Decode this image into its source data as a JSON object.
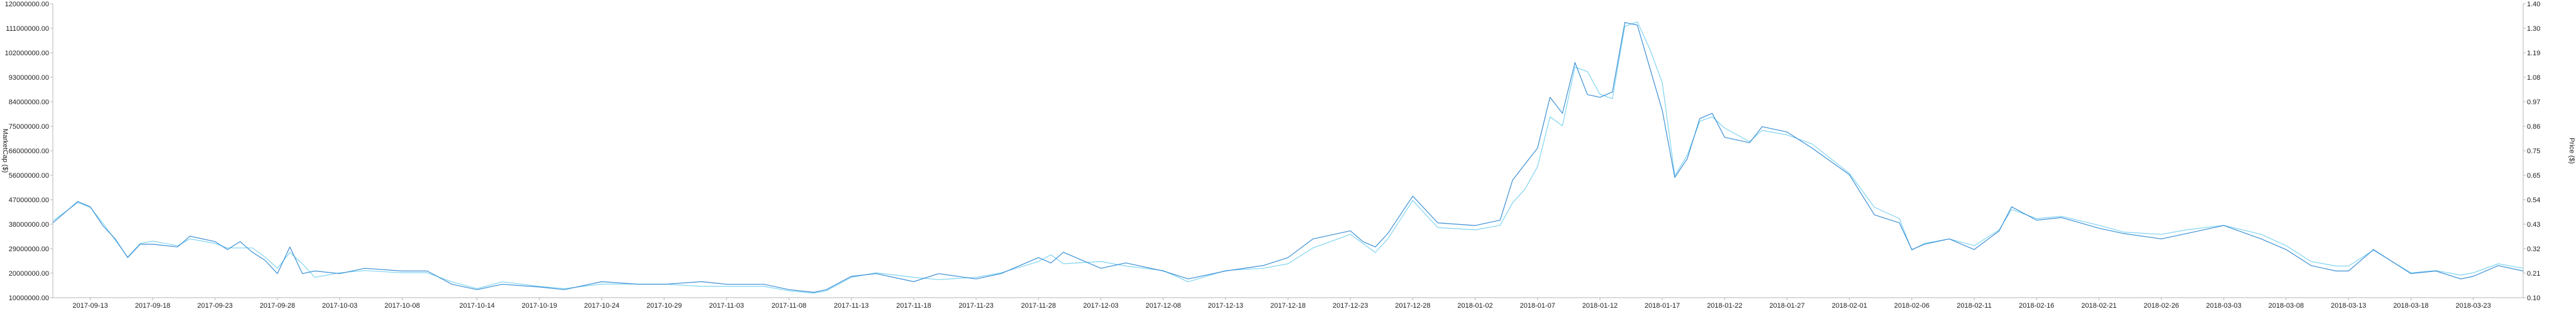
{
  "chart_data": {
    "type": "line",
    "title": "",
    "xlabel": "",
    "ylabel": "MarketCap ($)",
    "y2label": "Price ($)",
    "ylim": [
      10000000,
      120000000
    ],
    "y2lim": [
      0.1,
      1.4
    ],
    "yticks": [
      "120000000.00",
      "111000000.00",
      "102000000.00",
      "93000000.00",
      "84000000.00",
      "75000000.00",
      "66000000.00",
      "56000000.00",
      "47000000.00",
      "38000000.00",
      "29000000.00",
      "20000000.00",
      "10000000.00"
    ],
    "y2ticks": [
      "1.40",
      "1.30",
      "1.19",
      "1.08",
      "0.97",
      "0.86",
      "0.75",
      "0.65",
      "0.54",
      "0.43",
      "0.32",
      "0.21",
      "0.10"
    ],
    "x_start": "2017-09-10",
    "x_end": "2018-03-27",
    "xticks": [
      "2017-09-13",
      "2017-09-18",
      "2017-09-23",
      "2017-09-28",
      "2017-10-03",
      "2017-10-08",
      "2017-10-14",
      "2017-10-19",
      "2017-10-24",
      "2017-10-29",
      "2017-11-03",
      "2017-11-08",
      "2017-11-13",
      "2017-11-18",
      "2017-11-23",
      "2017-11-28",
      "2017-12-03",
      "2017-12-08",
      "2017-12-13",
      "2017-12-18",
      "2017-12-23",
      "2017-12-28",
      "2018-01-02",
      "2018-01-07",
      "2018-01-12",
      "2018-01-17",
      "2018-01-22",
      "2018-01-27",
      "2018-02-01",
      "2018-02-06",
      "2018-02-11",
      "2018-02-16",
      "2018-02-21",
      "2018-02-26",
      "2018-03-03",
      "2018-03-08",
      "2018-03-13",
      "2018-03-18",
      "2018-03-23"
    ],
    "grid": false,
    "series": [
      {
        "color": "#3b8fd6",
        "axis": "left",
        "x": [
          "2017-09-10",
          "2017-09-12",
          "2017-09-13",
          "2017-09-14",
          "2017-09-15",
          "2017-09-16",
          "2017-09-17",
          "2017-09-18",
          "2017-09-20",
          "2017-09-21",
          "2017-09-23",
          "2017-09-24",
          "2017-09-25",
          "2017-09-26",
          "2017-09-27",
          "2017-09-28",
          "2017-09-29",
          "2017-09-30",
          "2017-10-01",
          "2017-10-03",
          "2017-10-05",
          "2017-10-08",
          "2017-10-10",
          "2017-10-12",
          "2017-10-14",
          "2017-10-16",
          "2017-10-19",
          "2017-10-21",
          "2017-10-24",
          "2017-10-27",
          "2017-10-29",
          "2017-11-01",
          "2017-11-03",
          "2017-11-06",
          "2017-11-08",
          "2017-11-10",
          "2017-11-11",
          "2017-11-13",
          "2017-11-15",
          "2017-11-18",
          "2017-11-20",
          "2017-11-23",
          "2017-11-25",
          "2017-11-28",
          "2017-11-29",
          "2017-11-30",
          "2017-12-03",
          "2017-12-05",
          "2017-12-08",
          "2017-12-10",
          "2017-12-13",
          "2017-12-16",
          "2017-12-18",
          "2017-12-20",
          "2017-12-23",
          "2017-12-24",
          "2017-12-25",
          "2017-12-26",
          "2017-12-28",
          "2017-12-30",
          "2018-01-02",
          "2018-01-04",
          "2018-01-05",
          "2018-01-06",
          "2018-01-07",
          "2018-01-08",
          "2018-01-09",
          "2018-01-10",
          "2018-01-11",
          "2018-01-12",
          "2018-01-13",
          "2018-01-14",
          "2018-01-15",
          "2018-01-16",
          "2018-01-17",
          "2018-01-18",
          "2018-01-19",
          "2018-01-20",
          "2018-01-21",
          "2018-01-22",
          "2018-01-24",
          "2018-01-25",
          "2018-01-27",
          "2018-01-29",
          "2018-02-01",
          "2018-02-03",
          "2018-02-05",
          "2018-02-06",
          "2018-02-07",
          "2018-02-09",
          "2018-02-11",
          "2018-02-13",
          "2018-02-14",
          "2018-02-16",
          "2018-02-18",
          "2018-02-21",
          "2018-02-23",
          "2018-02-26",
          "2018-02-28",
          "2018-03-03",
          "2018-03-06",
          "2018-03-08",
          "2018-03-10",
          "2018-03-12",
          "2018-03-13",
          "2018-03-15",
          "2018-03-18",
          "2018-03-20",
          "2018-03-22",
          "2018-03-23",
          "2018-03-25",
          "2018-03-27"
        ],
        "values": [
          38000000,
          46000000,
          44000000,
          37000000,
          32000000,
          25000000,
          30000000,
          30000000,
          29000000,
          33000000,
          31000000,
          28000000,
          31000000,
          27000000,
          24000000,
          19000000,
          29000000,
          19000000,
          20000000,
          19000000,
          21000000,
          20000000,
          20000000,
          15000000,
          13000000,
          15000000,
          14000000,
          13000000,
          16000000,
          15000000,
          15000000,
          16000000,
          15000000,
          15000000,
          13000000,
          12000000,
          13000000,
          18000000,
          19000000,
          16000000,
          19000000,
          17000000,
          19000000,
          25000000,
          23000000,
          27000000,
          21000000,
          23000000,
          20000000,
          17000000,
          20000000,
          22000000,
          25000000,
          32000000,
          35000000,
          31000000,
          29000000,
          34000000,
          48000000,
          38000000,
          37000000,
          39000000,
          54000000,
          60000000,
          66000000,
          85000000,
          79000000,
          98000000,
          86000000,
          85000000,
          87000000,
          113000000,
          112000000,
          96000000,
          80000000,
          55000000,
          62000000,
          77000000,
          79000000,
          70000000,
          68000000,
          74000000,
          72000000,
          66000000,
          56000000,
          41000000,
          38000000,
          28000000,
          30000000,
          32000000,
          28000000,
          35000000,
          44000000,
          39000000,
          40000000,
          36000000,
          34000000,
          32000000,
          34000000,
          37000000,
          32000000,
          28000000,
          22000000,
          20000000,
          20000000,
          28000000,
          19000000,
          20000000,
          17000000,
          18000000,
          22000000,
          20000000
        ]
      },
      {
        "color": "#80d4f0",
        "axis": "right",
        "x": [
          "2017-09-10",
          "2017-09-12",
          "2017-09-13",
          "2017-09-14",
          "2017-09-16",
          "2017-09-17",
          "2017-09-18",
          "2017-09-20",
          "2017-09-21",
          "2017-09-23",
          "2017-09-24",
          "2017-09-25",
          "2017-09-26",
          "2017-09-27",
          "2017-09-28",
          "2017-09-29",
          "2017-09-30",
          "2017-10-01",
          "2017-10-03",
          "2017-10-05",
          "2017-10-08",
          "2017-10-10",
          "2017-10-12",
          "2017-10-14",
          "2017-10-16",
          "2017-10-19",
          "2017-10-21",
          "2017-10-24",
          "2017-10-27",
          "2017-10-29",
          "2017-11-01",
          "2017-11-03",
          "2017-11-06",
          "2017-11-08",
          "2017-11-10",
          "2017-11-11",
          "2017-11-13",
          "2017-11-15",
          "2017-11-18",
          "2017-11-20",
          "2017-11-23",
          "2017-11-25",
          "2017-11-28",
          "2017-11-29",
          "2017-11-30",
          "2017-12-03",
          "2017-12-05",
          "2017-12-08",
          "2017-12-10",
          "2017-12-13",
          "2017-12-16",
          "2017-12-18",
          "2017-12-20",
          "2017-12-23",
          "2017-12-24",
          "2017-12-25",
          "2017-12-26",
          "2017-12-28",
          "2017-12-30",
          "2018-01-02",
          "2018-01-04",
          "2018-01-05",
          "2018-01-06",
          "2018-01-07",
          "2018-01-08",
          "2018-01-09",
          "2018-01-10",
          "2018-01-11",
          "2018-01-12",
          "2018-01-13",
          "2018-01-14",
          "2018-01-15",
          "2018-01-16",
          "2018-01-17",
          "2018-01-18",
          "2018-01-19",
          "2018-01-20",
          "2018-01-21",
          "2018-01-22",
          "2018-01-24",
          "2018-01-25",
          "2018-01-27",
          "2018-01-29",
          "2018-02-01",
          "2018-02-03",
          "2018-02-05",
          "2018-02-06",
          "2018-02-07",
          "2018-02-09",
          "2018-02-11",
          "2018-02-13",
          "2018-02-14",
          "2018-02-16",
          "2018-02-18",
          "2018-02-21",
          "2018-02-23",
          "2018-02-26",
          "2018-02-28",
          "2018-03-03",
          "2018-03-06",
          "2018-03-08",
          "2018-03-10",
          "2018-03-12",
          "2018-03-13",
          "2018-03-15",
          "2018-03-18",
          "2018-03-20",
          "2018-03-22",
          "2018-03-23",
          "2018-03-25",
          "2018-03-27"
        ],
        "values": [
          0.44,
          0.52,
          0.5,
          0.43,
          0.28,
          0.34,
          0.35,
          0.33,
          0.36,
          0.34,
          0.32,
          0.32,
          0.32,
          0.28,
          0.23,
          0.3,
          0.25,
          0.19,
          0.21,
          0.22,
          0.21,
          0.21,
          0.17,
          0.14,
          0.17,
          0.15,
          0.14,
          0.16,
          0.16,
          0.16,
          0.15,
          0.15,
          0.15,
          0.13,
          0.12,
          0.13,
          0.19,
          0.21,
          0.19,
          0.18,
          0.19,
          0.21,
          0.26,
          0.29,
          0.25,
          0.26,
          0.24,
          0.22,
          0.17,
          0.22,
          0.23,
          0.25,
          0.32,
          0.38,
          0.34,
          0.3,
          0.36,
          0.53,
          0.41,
          0.4,
          0.42,
          0.52,
          0.58,
          0.68,
          0.9,
          0.86,
          1.12,
          1.1,
          1.0,
          0.98,
          1.3,
          1.32,
          1.2,
          1.05,
          0.64,
          0.73,
          0.88,
          0.9,
          0.85,
          0.79,
          0.84,
          0.82,
          0.78,
          0.65,
          0.5,
          0.45,
          0.31,
          0.34,
          0.36,
          0.33,
          0.4,
          0.49,
          0.45,
          0.46,
          0.42,
          0.39,
          0.38,
          0.4,
          0.42,
          0.38,
          0.33,
          0.26,
          0.24,
          0.24,
          0.31,
          0.21,
          0.22,
          0.2,
          0.21,
          0.25,
          0.23
        ]
      }
    ]
  }
}
